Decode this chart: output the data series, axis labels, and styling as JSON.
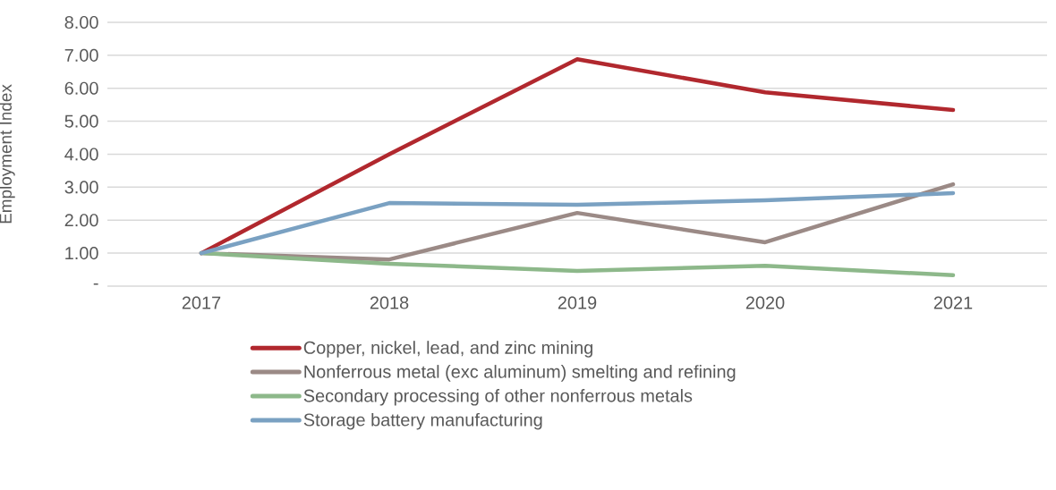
{
  "chart_data": {
    "type": "line",
    "ylabel": "Employment Index",
    "categories": [
      "2017",
      "2018",
      "2019",
      "2020",
      "2021"
    ],
    "series": [
      {
        "name": "Copper, nickel, lead, and zinc mining",
        "color": "#b1282e",
        "values": [
          1.0,
          4.0,
          6.88,
          5.88,
          5.34
        ]
      },
      {
        "name": "Nonferrous metal (exc aluminum) smelting and refining",
        "color": "#9b8a86",
        "values": [
          1.0,
          0.81,
          2.22,
          1.33,
          3.09
        ]
      },
      {
        "name": "Secondary processing of other nonferrous metals",
        "color": "#8db88a",
        "values": [
          1.0,
          0.68,
          0.46,
          0.62,
          0.33
        ]
      },
      {
        "name": "Storage battery manufacturing",
        "color": "#7aa1c2",
        "values": [
          1.0,
          2.52,
          2.47,
          2.6,
          2.82
        ]
      }
    ],
    "ylim": [
      0,
      8
    ],
    "yticks": [
      {
        "value": 0,
        "label": "-"
      },
      {
        "value": 1,
        "label": "1.00"
      },
      {
        "value": 2,
        "label": "2.00"
      },
      {
        "value": 3,
        "label": "3.00"
      },
      {
        "value": 4,
        "label": "4.00"
      },
      {
        "value": 5,
        "label": "5.00"
      },
      {
        "value": 6,
        "label": "6.00"
      },
      {
        "value": 7,
        "label": "7.00"
      },
      {
        "value": 8,
        "label": "8.00"
      }
    ],
    "grid": "y",
    "legend": "bottom"
  }
}
